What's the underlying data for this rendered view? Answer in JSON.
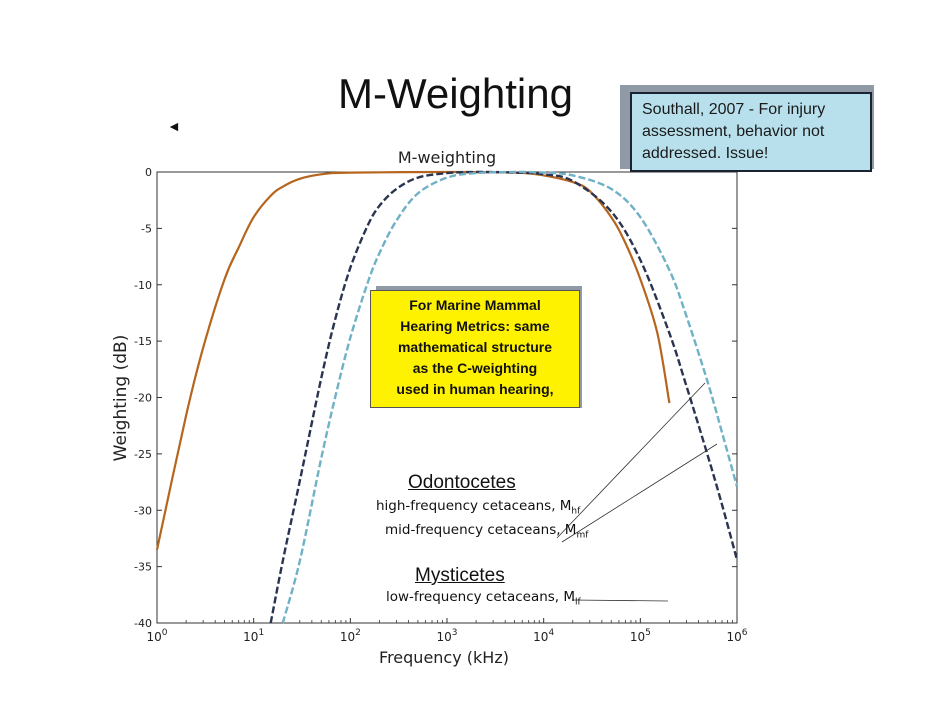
{
  "slide": {
    "title": "M-Weighting",
    "back_arrow": "◄",
    "note_line1": "Southall, 2007 - For injury",
    "note_line2": "assessment, behavior not",
    "note_line3": "addressed. Issue!",
    "callout_line1": "For Marine Mammal",
    "callout_line2": "Hearing Metrics: same",
    "callout_line3": "mathematical structure",
    "callout_line4": "as the C-weighting",
    "callout_line5": "used in human hearing,"
  },
  "labels": {
    "odontocetes": "Odontocetes",
    "mysticetes": "Mysticetes",
    "hf_text": "high-frequency cetaceans, M",
    "hf_sub": "hf",
    "mf_text": "mid-frequency cetaceans, M",
    "mf_sub": "mf",
    "lf_text": "low-frequency cetaceans, M",
    "lf_sub": "lf"
  },
  "colors": {
    "lf": "#b5651d",
    "mf": "#2a3450",
    "hf": "#6fb1c6",
    "note_bg": "#b8e0ec",
    "callout_bg": "#fff200"
  },
  "chart_data": {
    "type": "line",
    "title": "M-weighting",
    "xlabel": "Frequency (kHz)",
    "ylabel": "Weighting (dB)",
    "xscale": "log",
    "xlim": [
      1,
      1000000
    ],
    "ylim": [
      -40,
      0
    ],
    "xticks": [
      1,
      10,
      100,
      1000,
      10000,
      100000,
      1000000
    ],
    "xtick_labels": [
      [
        "10",
        "0"
      ],
      [
        "10",
        "1"
      ],
      [
        "10",
        "2"
      ],
      [
        "10",
        "3"
      ],
      [
        "10",
        "4"
      ],
      [
        "10",
        "5"
      ],
      [
        "10",
        "6"
      ]
    ],
    "yticks": [
      0,
      -5,
      -10,
      -15,
      -20,
      -25,
      -30,
      -35,
      -40
    ],
    "ytick_labels": [
      "0",
      "-5",
      "-10",
      "-15",
      "-20",
      "-25",
      "-30",
      "-35",
      "-40"
    ],
    "series": [
      {
        "name": "low-frequency cetaceans, Mlf",
        "key": "lf",
        "style": "solid",
        "x": [
          1,
          2,
          3,
          5,
          7,
          10,
          15,
          20,
          30,
          50,
          100,
          1000,
          5000,
          10000,
          20000,
          30000,
          50000,
          70000,
          100000,
          150000,
          200000
        ],
        "y": [
          -33.5,
          -21.6,
          -15.6,
          -9.5,
          -6.7,
          -4.0,
          -2.1,
          -1.3,
          -0.6,
          -0.2,
          -0.05,
          0,
          -0.05,
          -0.3,
          -0.9,
          -1.7,
          -4.0,
          -6.3,
          -9.5,
          -14.3,
          -20.5
        ]
      },
      {
        "name": "mid-frequency cetaceans, Mmf",
        "key": "mf",
        "style": "dashed",
        "x": [
          15,
          20,
          30,
          50,
          70,
          100,
          150,
          200,
          300,
          500,
          1000,
          2000,
          5000,
          10000,
          20000,
          50000,
          100000,
          200000,
          300000,
          500000,
          700000,
          1000000
        ],
        "y": [
          -40,
          -34.5,
          -27.4,
          -18.3,
          -13.0,
          -8.5,
          -4.8,
          -3.0,
          -1.5,
          -0.5,
          -0.1,
          0,
          -0.05,
          -0.2,
          -0.8,
          -3.5,
          -7.8,
          -14.3,
          -19.0,
          -25.2,
          -29.5,
          -34.4
        ]
      },
      {
        "name": "high-frequency cetaceans, Mhf",
        "key": "hf",
        "style": "dashed",
        "x": [
          20,
          30,
          50,
          70,
          100,
          150,
          200,
          300,
          500,
          1000,
          2000,
          5000,
          10000,
          20000,
          50000,
          100000,
          200000,
          300000,
          500000,
          700000,
          1000000
        ],
        "y": [
          -40,
          -34.5,
          -25.4,
          -19.9,
          -14.7,
          -9.9,
          -7.2,
          -4.3,
          -1.9,
          -0.5,
          -0.1,
          0,
          -0.05,
          -0.3,
          -1.5,
          -4.0,
          -8.7,
          -12.8,
          -18.7,
          -23.1,
          -27.9
        ]
      }
    ],
    "annotations": [
      "Odontocetes",
      "Mysticetes"
    ]
  }
}
